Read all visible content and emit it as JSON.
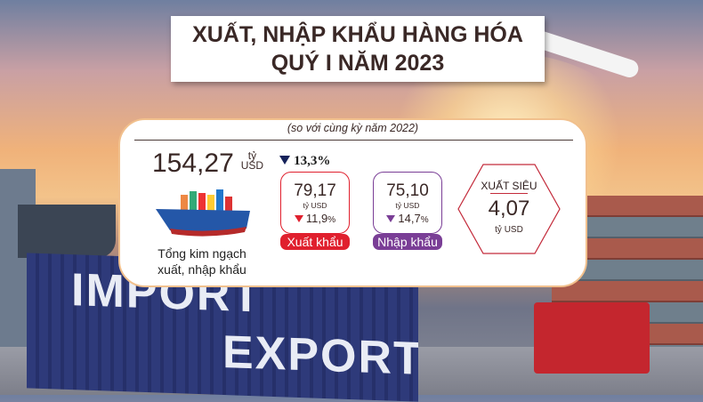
{
  "title": {
    "line1": "XUẤT, NHẬP KHẨU HÀNG HÓA",
    "line2": "QUÝ I NĂM 2023"
  },
  "comparison_note": "(so với cùng kỳ năm 2022)",
  "total": {
    "value": "154,27",
    "unit_top": "tỷ",
    "unit_bottom": "USD",
    "change": "13,3%",
    "change_direction": "down",
    "caption_line1": "Tổng kim ngạch",
    "caption_line2": "xuất, nhập khẩu"
  },
  "export": {
    "value": "79,17",
    "unit": "tỷ USD",
    "change": "11,9",
    "pct": "%",
    "change_direction": "down",
    "label": "Xuất khẩu",
    "color": "#e0202e"
  },
  "import": {
    "value": "75,10",
    "unit": "tỷ USD",
    "change": "14,7",
    "pct": "%",
    "change_direction": "down",
    "label": "Nhập khẩu",
    "color": "#7a3e96"
  },
  "surplus": {
    "label": "XUẤT SIÊU",
    "value": "4,07",
    "unit": "tỷ USD",
    "color": "#c32a3a"
  },
  "background": {
    "container_text1": "IMPORT",
    "container_text2": "EXPORT"
  }
}
